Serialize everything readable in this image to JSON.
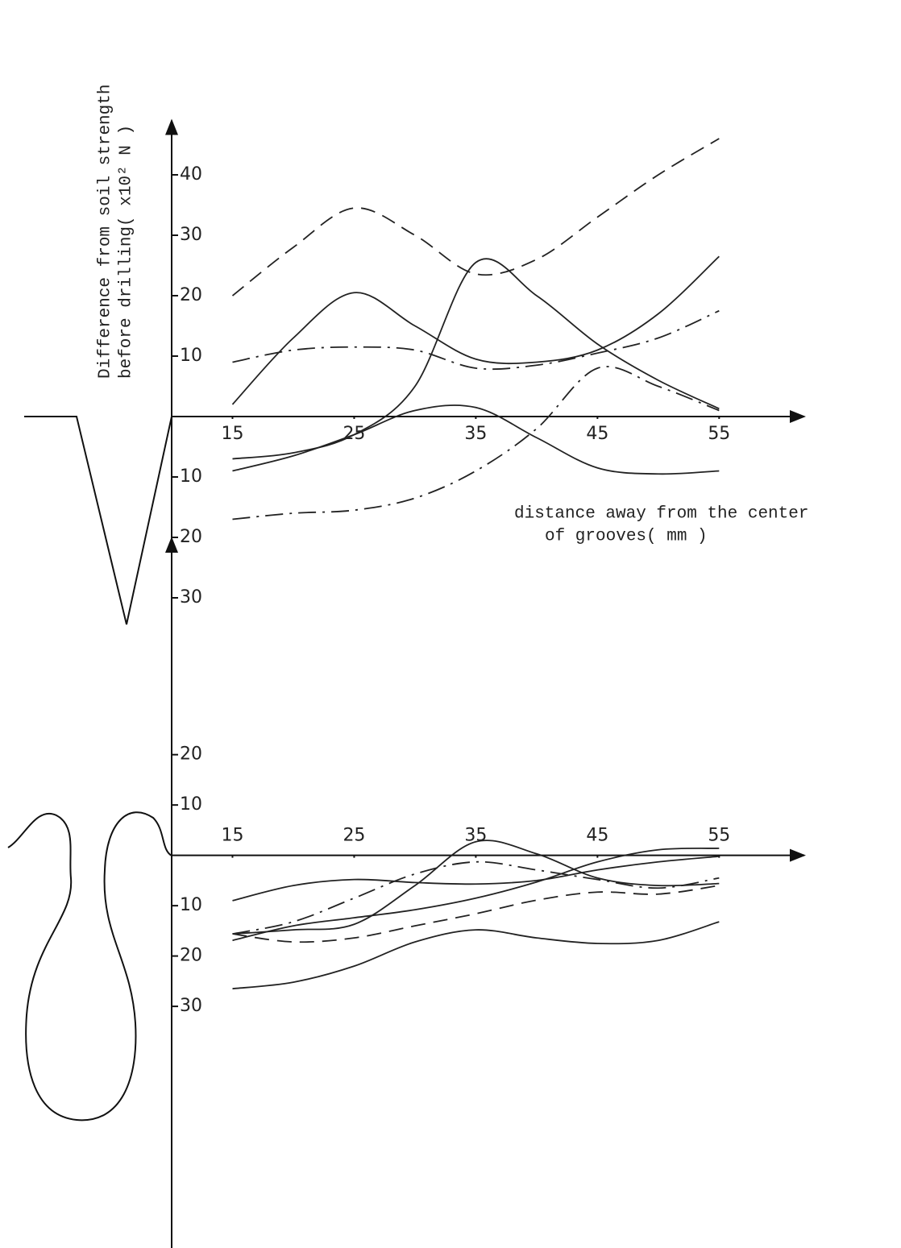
{
  "chart_data": [
    {
      "type": "line",
      "y_label": [
        "Difference from soil strength",
        "before drilling( x10² N )"
      ],
      "x_label": [
        "distance away from the center",
        "of grooves( mm )"
      ],
      "x": [
        15,
        20,
        25,
        30,
        35,
        40,
        45,
        50,
        55
      ],
      "xlim": [
        10,
        62
      ],
      "xticks": [
        15,
        25,
        35,
        45,
        55
      ],
      "ylim": [
        -37,
        49
      ],
      "yticks": [
        40,
        30,
        20,
        10,
        {
          "value": -10,
          "label": "10"
        },
        {
          "value": -20,
          "label": "20"
        },
        {
          "value": -30,
          "label": "30"
        }
      ],
      "grid": false,
      "series": [
        {
          "color": "#222",
          "style": "dashed",
          "values": [
            20,
            28,
            34.5,
            30,
            23.6,
            26,
            33,
            40,
            46
          ]
        },
        {
          "color": "#222",
          "style": "solid",
          "values": [
            2,
            13,
            20.5,
            15,
            9.5,
            9,
            11,
            17,
            26.5
          ]
        },
        {
          "color": "#222",
          "style": "solid",
          "values": [
            -7,
            -6,
            -3,
            5,
            25.5,
            20,
            12,
            6,
            1.3
          ]
        },
        {
          "color": "#222",
          "style": "dashdot",
          "values": [
            9,
            11,
            11.5,
            11,
            8,
            8.5,
            10.5,
            13,
            17.5
          ]
        },
        {
          "color": "#222",
          "style": "solid",
          "values": [
            -9,
            -6.5,
            -3,
            1,
            1.5,
            -3.5,
            -8.5,
            -9.5,
            -9
          ]
        },
        {
          "color": "#222",
          "style": "dashdot",
          "values": [
            -17,
            -16,
            -15.5,
            -13.5,
            -9,
            -2,
            8,
            5,
            1
          ]
        }
      ]
    },
    {
      "type": "line",
      "x": [
        15,
        20,
        25,
        30,
        35,
        40,
        45,
        50,
        55
      ],
      "xlim": [
        10,
        62
      ],
      "xticks": [
        15,
        25,
        35,
        45,
        55
      ],
      "ylim": [
        -78,
        63
      ],
      "yticks": [
        20,
        10,
        {
          "value": -10,
          "label": "10"
        },
        {
          "value": -20,
          "label": "20"
        },
        {
          "value": -30,
          "label": "30"
        }
      ],
      "grid": false,
      "series": [
        {
          "color": "#222",
          "style": "solid",
          "values": [
            -9,
            -6,
            -4.8,
            -5.4,
            -5.7,
            -5,
            -2.9,
            -1.3,
            -0.2
          ]
        },
        {
          "color": "#222",
          "style": "solid",
          "values": [
            -15.6,
            -14.8,
            -13.7,
            -6,
            2.7,
            0.3,
            -4.5,
            -6,
            -5.6
          ]
        },
        {
          "color": "#222",
          "style": "dashdot",
          "values": [
            -15.6,
            -13.2,
            -8.5,
            -3.7,
            -1.3,
            -2.9,
            -4.8,
            -6.5,
            -4.5
          ]
        },
        {
          "color": "#222",
          "style": "dashed",
          "values": [
            -15.6,
            -17.2,
            -16.4,
            -14,
            -11.6,
            -8.9,
            -7.3,
            -7.7,
            -6
          ]
        },
        {
          "color": "#222",
          "style": "solid",
          "values": [
            -16.9,
            -14,
            -12.4,
            -10.8,
            -8.5,
            -5.3,
            -1.3,
            1.1,
            1.4
          ]
        },
        {
          "color": "#222",
          "style": "solid",
          "values": [
            -26.5,
            -25.2,
            -22,
            -17.2,
            -14.8,
            -16.4,
            -17.5,
            -16.9,
            -13.2
          ]
        }
      ]
    }
  ]
}
